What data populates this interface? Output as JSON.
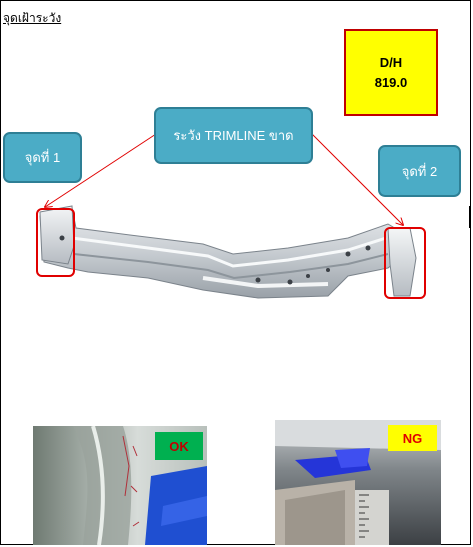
{
  "page": {
    "title": "จุดเฝ้าระวัง"
  },
  "dh_box": {
    "label": "D/H",
    "value": "819.0"
  },
  "callouts": {
    "main": "ระวัง TRIMLINE ขาด",
    "point_1": "จุดที่ 1",
    "point_2": "จุดที่ 2"
  },
  "photos": {
    "ok_tag": "OK",
    "ng_tag": "NG"
  },
  "colors": {
    "callout_fill": "#4bacc6",
    "callout_border": "#2e7f95",
    "highlight_box": "#ffff00",
    "highlight_border": "#c00000",
    "marker_red": "#e00000",
    "ok_green": "#00b050"
  }
}
